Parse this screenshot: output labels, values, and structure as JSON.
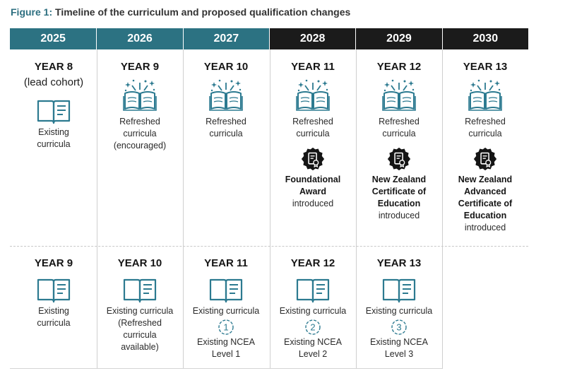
{
  "figure": {
    "label": "Figure 1:",
    "text": "Timeline of the curriculum and proposed qualification changes"
  },
  "colors": {
    "teal": "#2c7282",
    "black": "#1b1b1b"
  },
  "years": [
    "2025",
    "2026",
    "2027",
    "2028",
    "2029",
    "2030"
  ],
  "row1": [
    {
      "level": "YEAR 8",
      "sub": "(lead cohort)",
      "icon": "book-icon",
      "text": "Existing curricula"
    },
    {
      "level": "YEAR 9",
      "icon": "sparkle-book-icon",
      "text": "Refreshed curricula (encouraged)"
    },
    {
      "level": "YEAR 10",
      "icon": "sparkle-book-icon",
      "text": "Refreshed curricula"
    },
    {
      "level": "YEAR 11",
      "icon": "sparkle-book-icon",
      "text": "Refreshed curricula",
      "badge_icon": "certificate-badge-icon",
      "award": "Foundational Award",
      "award_status": "introduced"
    },
    {
      "level": "YEAR 12",
      "icon": "sparkle-book-icon",
      "text": "Refreshed curricula",
      "badge_icon": "certificate-badge-icon",
      "award": "New Zealand Certificate of Education",
      "award_status": "introduced"
    },
    {
      "level": "YEAR 13",
      "icon": "sparkle-book-icon",
      "text": "Refreshed curricula",
      "badge_icon": "certificate-badge-icon",
      "award": "New Zealand Advanced Certificate of Education",
      "award_status": "introduced"
    }
  ],
  "row2": [
    {
      "level": "YEAR 9",
      "icon": "book-icon",
      "text": "Existing curricula"
    },
    {
      "level": "YEAR 10",
      "icon": "book-icon",
      "text": "Existing curricula",
      "note": "(Refreshed curricula available)"
    },
    {
      "level": "YEAR 11",
      "icon": "book-icon",
      "text": "Existing curricula",
      "ncea_num": "1",
      "ncea": "Existing NCEA Level 1"
    },
    {
      "level": "YEAR 12",
      "icon": "book-icon",
      "text": "Existing curricula",
      "ncea_num": "2",
      "ncea": "Existing NCEA Level 2"
    },
    {
      "level": "YEAR 13",
      "icon": "book-icon",
      "text": "Existing curricula",
      "ncea_num": "3",
      "ncea": "Existing NCEA Level 3"
    }
  ]
}
